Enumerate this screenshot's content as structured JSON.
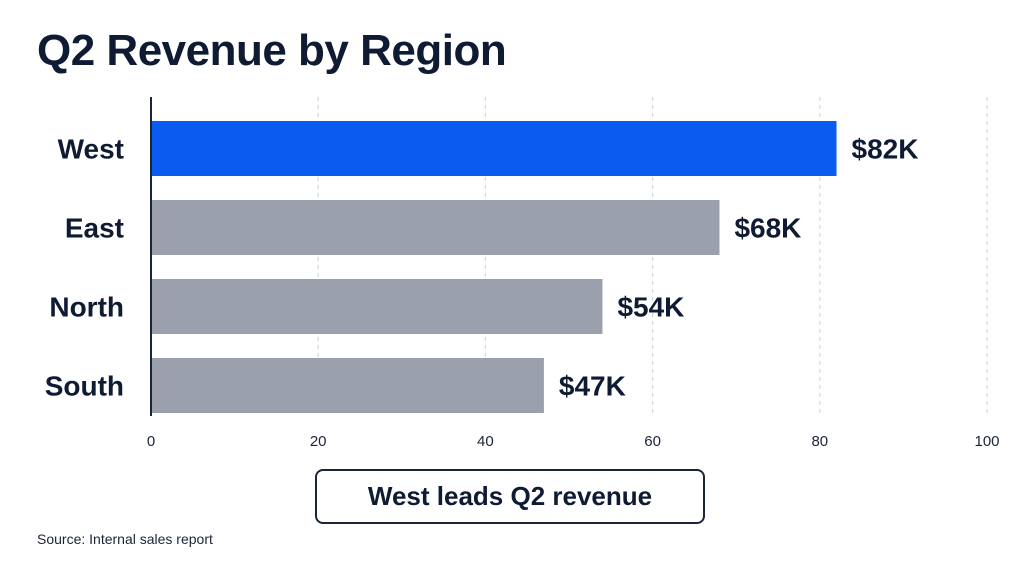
{
  "colors": {
    "highlight": "#0a5cf0",
    "bar": "#9aa1ac",
    "text": "#0f1a33",
    "grid": "#d4d7dd",
    "axis": "#1c2438"
  },
  "chart_data": {
    "type": "bar",
    "orientation": "horizontal",
    "title": "Q2 Revenue by Region",
    "categories": [
      "West",
      "East",
      "North",
      "South"
    ],
    "values": [
      82,
      68,
      54,
      47
    ],
    "data_labels": [
      "$82K",
      "$68K",
      "$54K",
      "$47K"
    ],
    "highlight_category": "West",
    "xlim": [
      0,
      100
    ],
    "xticks": [
      0,
      20,
      40,
      60,
      80,
      100
    ],
    "grid": true,
    "legend": "none"
  },
  "callout": "West leads Q2 revenue",
  "source": "Source: Internal sales report"
}
